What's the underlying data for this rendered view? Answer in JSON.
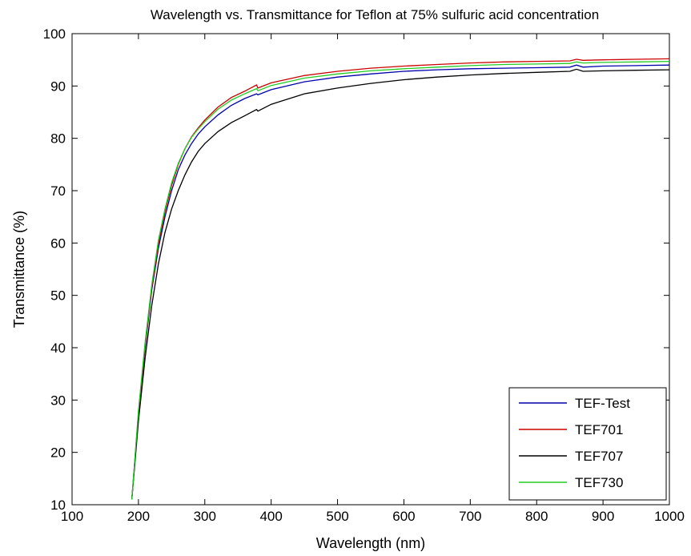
{
  "chart_data": {
    "type": "line",
    "title": "Wavelength vs. Transmittance for Teflon at 75% sulfuric acid concentration",
    "xlabel": "Wavelength (nm)",
    "ylabel": "Transmittance (%)",
    "xlim": [
      100,
      1000
    ],
    "ylim": [
      10,
      100
    ],
    "xticks": [
      100,
      200,
      300,
      400,
      500,
      600,
      700,
      800,
      900,
      1000
    ],
    "yticks": [
      10,
      20,
      30,
      40,
      50,
      60,
      70,
      80,
      90,
      100
    ],
    "grid": false,
    "legend_position": "bottom-right",
    "series": [
      {
        "name": "TEF-Test",
        "color": "#0000aa",
        "x": [
          190,
          200,
          210,
          220,
          230,
          240,
          250,
          260,
          270,
          280,
          290,
          300,
          320,
          340,
          360,
          378,
          380,
          400,
          450,
          500,
          550,
          600,
          650,
          700,
          750,
          800,
          850,
          860,
          870,
          900,
          950,
          1000
        ],
        "y": [
          11,
          27,
          40,
          51,
          59,
          65,
          70,
          74,
          76.8,
          79,
          80.8,
          82.2,
          84.5,
          86.3,
          87.6,
          88.5,
          88.3,
          89.3,
          90.8,
          91.7,
          92.3,
          92.8,
          93.1,
          93.3,
          93.4,
          93.5,
          93.6,
          94,
          93.6,
          93.8,
          93.9,
          94
        ]
      },
      {
        "name": "TEF701",
        "color": "#cc0000",
        "x": [
          190,
          200,
          210,
          220,
          230,
          240,
          250,
          260,
          270,
          280,
          290,
          300,
          320,
          340,
          360,
          378,
          380,
          400,
          450,
          500,
          550,
          600,
          650,
          700,
          750,
          800,
          850,
          860,
          870,
          900,
          950,
          1000
        ],
        "y": [
          11,
          27.5,
          40.5,
          51.5,
          59.8,
          66,
          71,
          75,
          78,
          80.3,
          82,
          83.5,
          86,
          87.8,
          89,
          90.2,
          89.6,
          90.6,
          92,
          92.8,
          93.4,
          93.8,
          94.1,
          94.4,
          94.6,
          94.7,
          94.8,
          95.1,
          94.9,
          95,
          95.1,
          95.2
        ]
      },
      {
        "name": "TEF707",
        "color": "#000000",
        "x": [
          190,
          200,
          210,
          220,
          230,
          240,
          250,
          260,
          270,
          280,
          290,
          300,
          320,
          340,
          360,
          378,
          380,
          400,
          450,
          500,
          550,
          600,
          650,
          700,
          750,
          800,
          850,
          860,
          870,
          900,
          950,
          1000
        ],
        "y": [
          11,
          26,
          38,
          48,
          56,
          62,
          66.5,
          70,
          73,
          75.5,
          77.5,
          79,
          81.3,
          83,
          84.3,
          85.5,
          85.2,
          86.5,
          88.5,
          89.6,
          90.5,
          91.2,
          91.7,
          92.1,
          92.4,
          92.6,
          92.8,
          93.2,
          92.8,
          92.9,
          93,
          93.1
        ]
      },
      {
        "name": "TEF730",
        "color": "#22cc22",
        "x": [
          190,
          200,
          210,
          220,
          230,
          240,
          250,
          260,
          270,
          280,
          290,
          300,
          320,
          340,
          360,
          378,
          380,
          400,
          450,
          500,
          550,
          600,
          650,
          700,
          750,
          800,
          850,
          860,
          870,
          900,
          950,
          1000
        ],
        "y": [
          11,
          28,
          41,
          52,
          60.5,
          66.5,
          71.5,
          75.2,
          78,
          80.2,
          81.8,
          83.2,
          85.6,
          87.3,
          88.5,
          89.5,
          89.1,
          90.1,
          91.5,
          92.3,
          92.9,
          93.3,
          93.6,
          93.9,
          94.1,
          94.2,
          94.3,
          94.6,
          94.4,
          94.5,
          94.6,
          94.7
        ]
      }
    ]
  }
}
